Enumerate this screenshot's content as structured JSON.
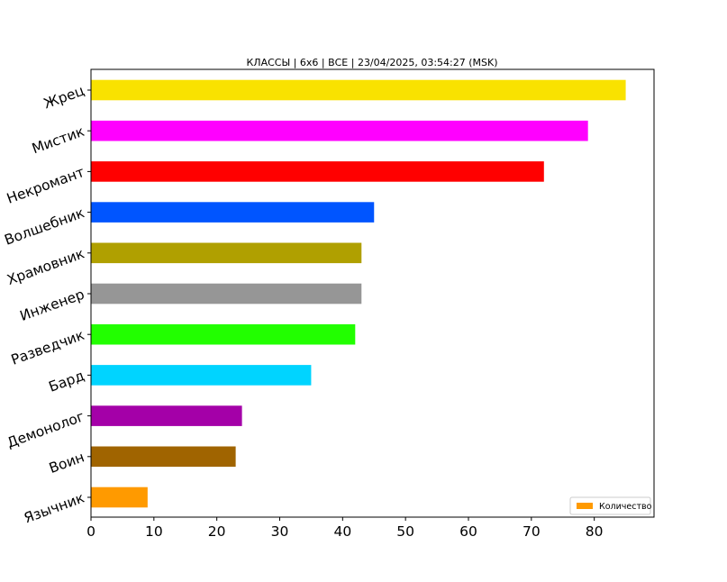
{
  "chart_data": {
    "type": "bar",
    "orientation": "horizontal",
    "title": "КЛАССЫ | 6x6 | ВСЕ | 23/04/2025, 03:54:27 (MSK)",
    "xlabel": "",
    "ylabel": "",
    "categories": [
      "Жрец",
      "Мистик",
      "Некромант",
      "Волшебник",
      "Храмовник",
      "Инженер",
      "Разведчик",
      "Бард",
      "Демонолог",
      "Воин",
      "Язычник"
    ],
    "values": [
      85,
      79,
      72,
      45,
      43,
      43,
      42,
      35,
      24,
      23,
      9
    ],
    "colors": [
      "#f9e200",
      "#ff00ff",
      "#ff0000",
      "#0055ff",
      "#b0a000",
      "#969696",
      "#22ff00",
      "#00d4ff",
      "#a400a8",
      "#a06400",
      "#ff9a00"
    ],
    "xlim": [
      0,
      89.5
    ],
    "xticks": [
      0,
      10,
      20,
      30,
      40,
      50,
      60,
      70,
      80
    ],
    "grid": false,
    "legend": {
      "position": "bottom-right",
      "entries": [
        {
          "label": "Количество",
          "color": "#ff9a00"
        }
      ]
    }
  }
}
